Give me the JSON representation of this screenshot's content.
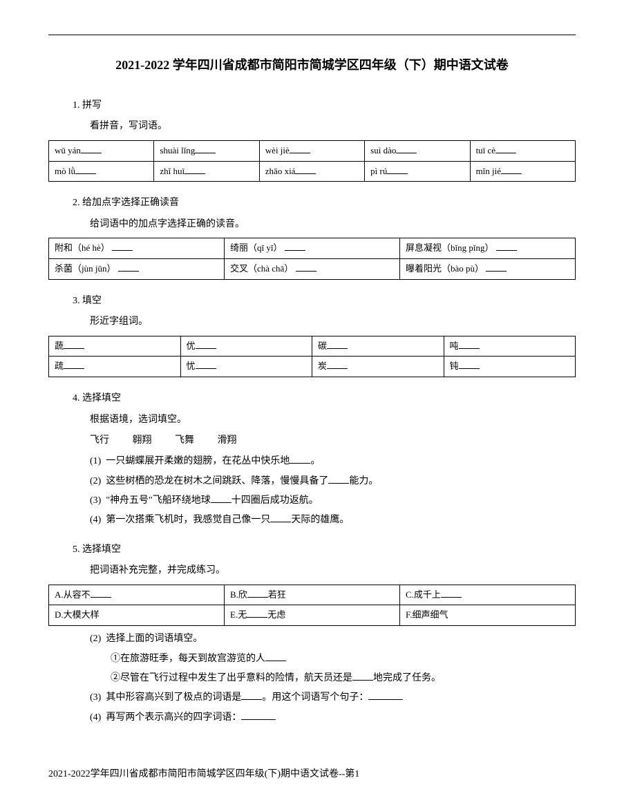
{
  "title": "2021-2022 学年四川省成都市简阳市简城学区四年级（下）期中语文试卷",
  "q1": {
    "num": "1. 拼写",
    "desc": "看拼音，写词语。",
    "rows": [
      [
        "wū yán",
        "shuài lǐng",
        "wèi jiè",
        "suì dào",
        "tuī cè"
      ],
      [
        "mò lǜ",
        "zhǐ huī",
        "zhāo xiá",
        "pì rú",
        "mǐn jié"
      ]
    ]
  },
  "q2": {
    "num": "2. 给加点字选择正确读音",
    "desc": "给词语中的加点字选择正确的读音。",
    "rows": [
      [
        "附和（hé hè）",
        "绮丽（qǐ yǐ）",
        "屏息凝视（bǐng pǐng）"
      ],
      [
        "杀菌（jùn jūn）",
        "交叉（chà chā）",
        "曝着阳光（bào pù）"
      ]
    ]
  },
  "q3": {
    "num": "3. 填空",
    "desc": "形近字组词。",
    "rows": [
      [
        "蔬",
        "优",
        "碳",
        "吨"
      ],
      [
        "疏",
        "忧",
        "炭",
        "钝"
      ]
    ]
  },
  "q4": {
    "num": "4. 选择填空",
    "desc": "根据语境，选词填空。",
    "words": [
      "飞行",
      "翱翔",
      "飞舞",
      "滑翔"
    ],
    "items": [
      {
        "n": "(1)",
        "pre": "一只蝴蝶展开柔嫩的翅膀，在花丛中快乐地",
        "post": "。"
      },
      {
        "n": "(2)",
        "pre": "这些树栖的恐龙在树木之间跳跃、降落，慢慢具备了",
        "post": "能力。"
      },
      {
        "n": "(3)",
        "pre": "\"神舟五号\"飞船环绕地球",
        "post": "十四圈后成功返航。"
      },
      {
        "n": "(4)",
        "pre": "第一次搭乘飞机时，我感觉自己像一只",
        "post": "天际的雄鹰。"
      }
    ]
  },
  "q5": {
    "num": "5. 选择填空",
    "desc": "把词语补充完整，并完成练习。",
    "rows": [
      [
        {
          "pre": "A.从容不",
          "uline": true
        },
        {
          "pre": "B.欣",
          "mid": "若狂",
          "uline": true
        },
        {
          "pre": "C.成千上",
          "uline": true
        }
      ],
      [
        {
          "pre": "D.大模大样"
        },
        {
          "pre": "E.无",
          "mid": "无虑",
          "uline": true
        },
        {
          "pre": "F.细声细气"
        }
      ]
    ],
    "sub2": {
      "n": "(2)",
      "t": "选择上面的词语填空。",
      "s1": "①在旅游旺季，每天到故宫游览的人",
      "s2a": "②尽管在飞行过程中发生了出乎意料的险情，航天员还是",
      "s2b": "地完成了任务。"
    },
    "sub3": {
      "n": "(3)",
      "a": "其中形容高兴到了极点的词语是",
      "b": "。用这个词语写个句子："
    },
    "sub4": {
      "n": "(4)",
      "t": "再写两个表示高兴的四字词语："
    }
  },
  "footer": "2021-2022学年四川省成都市简阳市简城学区四年级(下)期中语文试卷--第1"
}
